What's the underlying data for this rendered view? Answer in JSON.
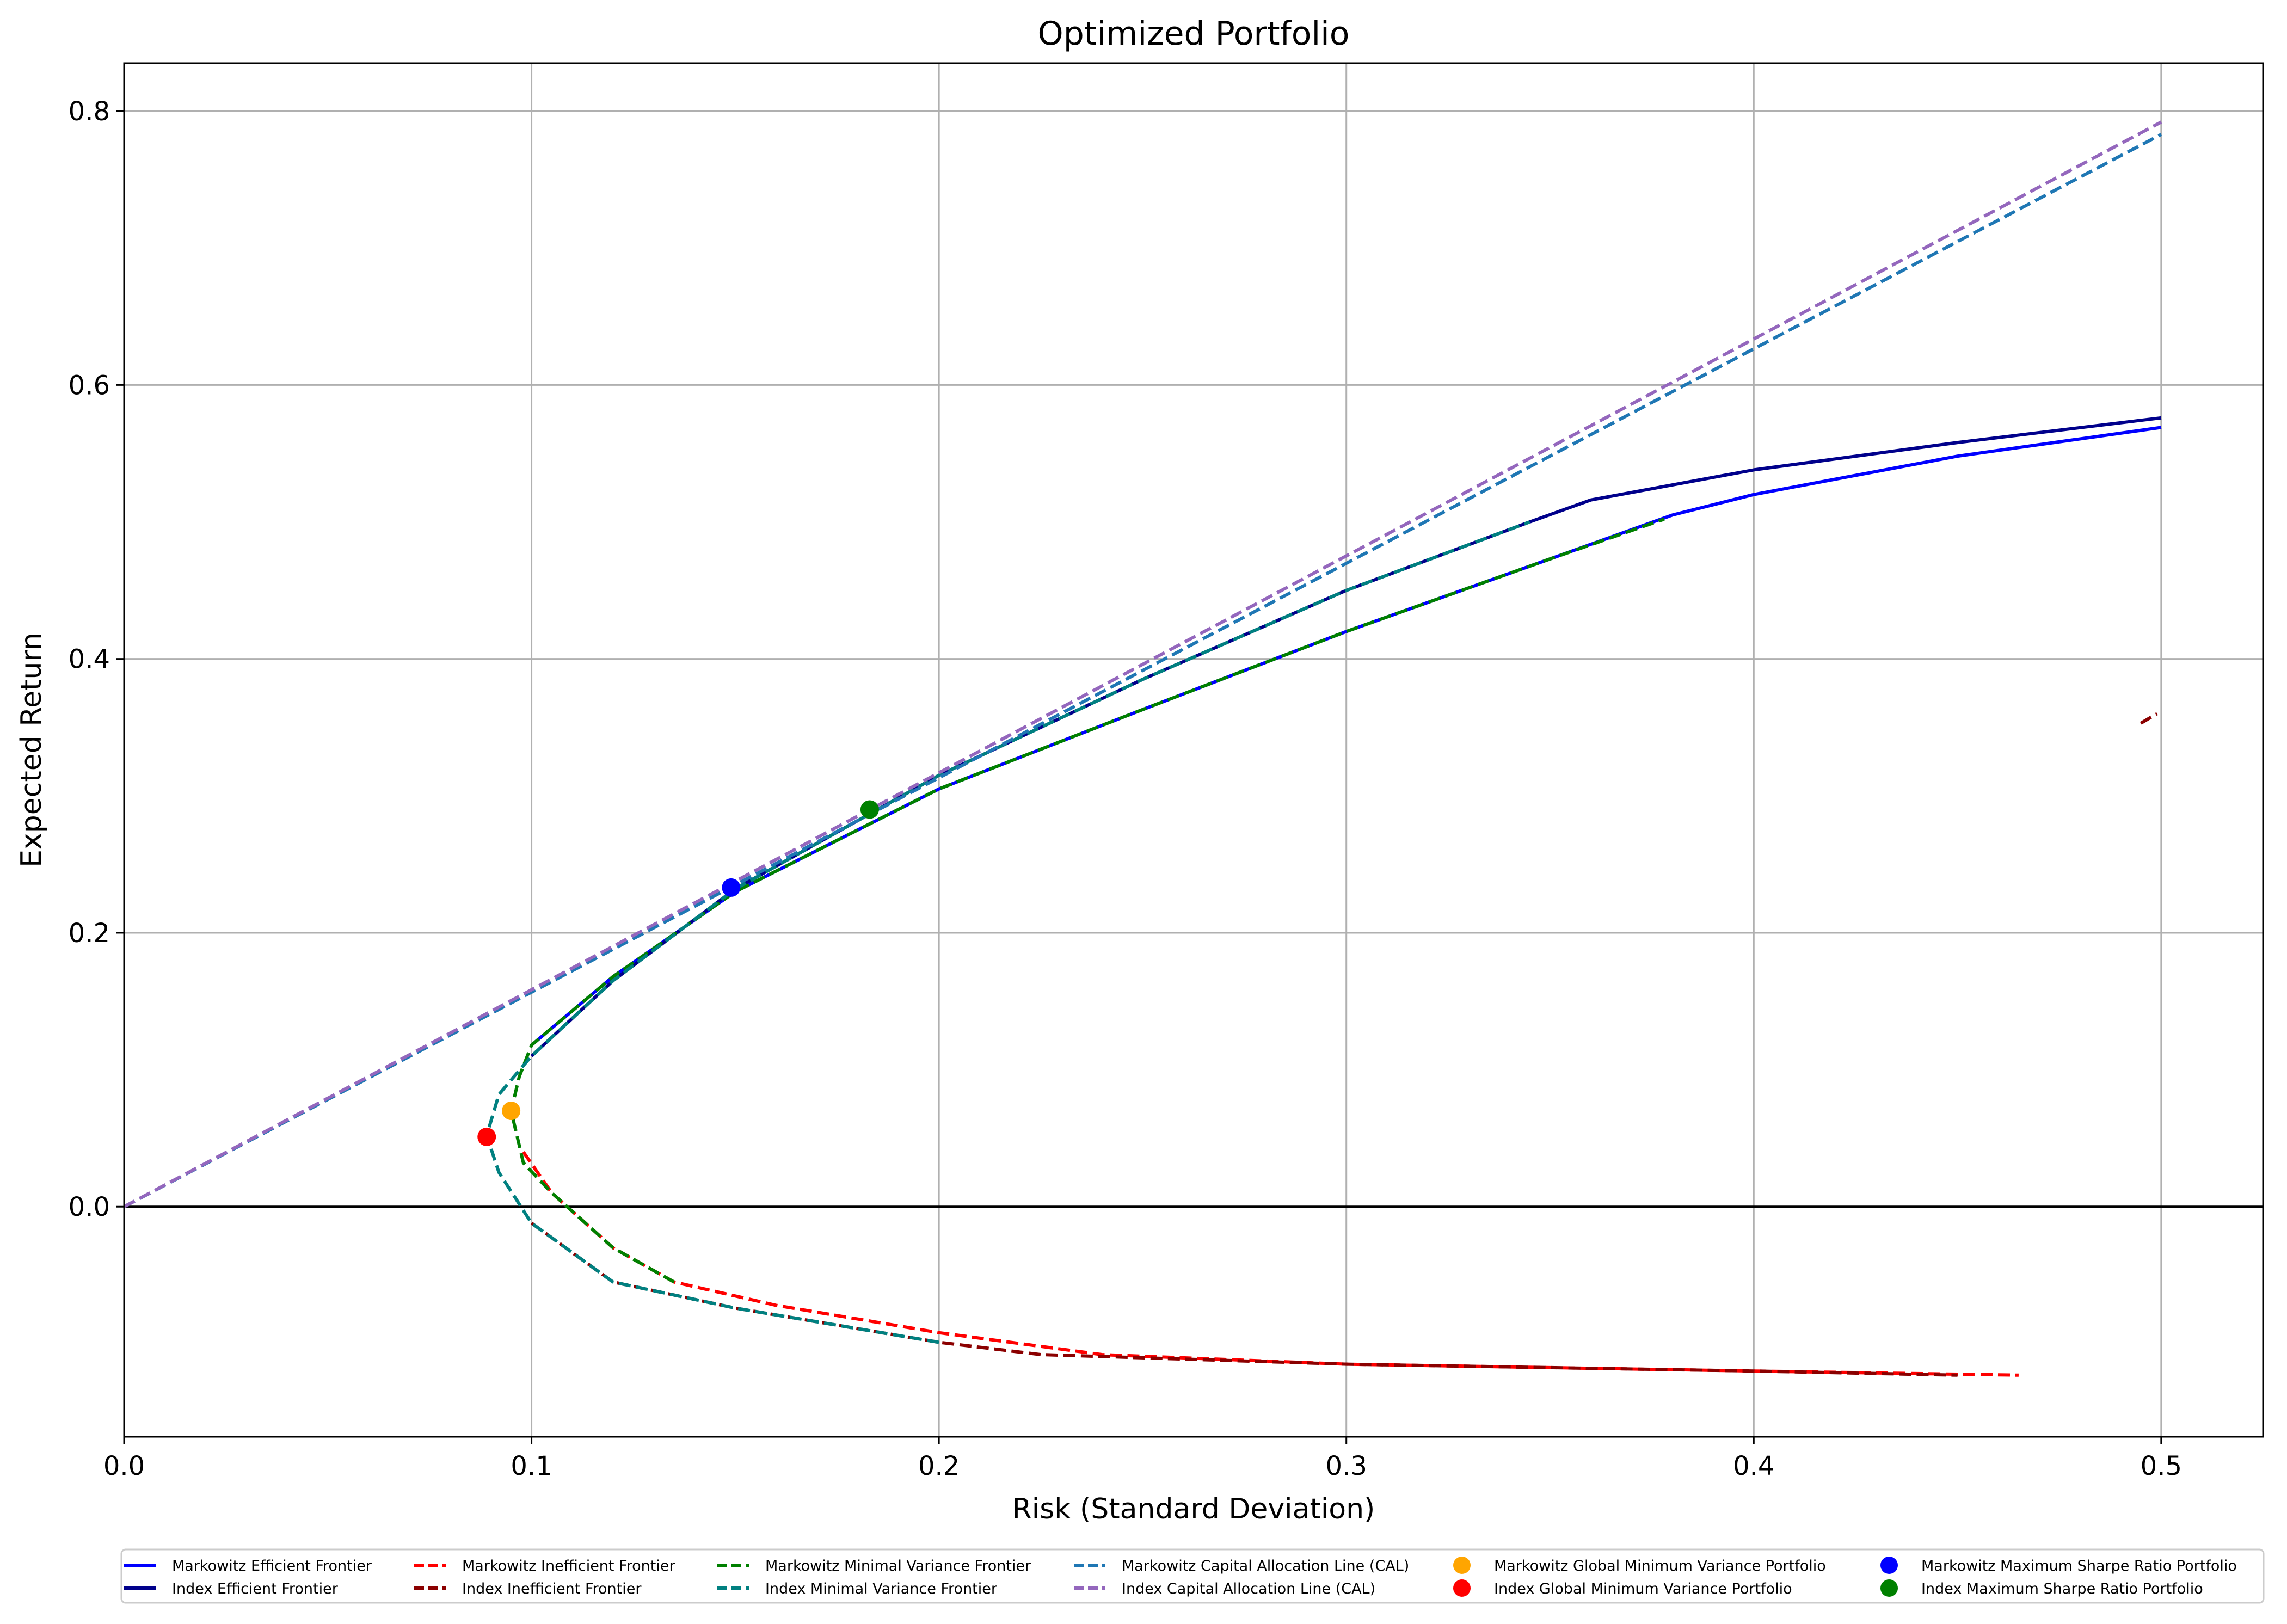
{
  "chart_data": {
    "type": "line",
    "title": "Optimized Portfolio",
    "xlabel": "Risk (Standard Deviation)",
    "ylabel": "Expected Return",
    "xlim": [
      0.0,
      0.525
    ],
    "ylim": [
      -0.168,
      0.835
    ],
    "xticks": [
      0.0,
      0.1,
      0.2,
      0.3,
      0.4,
      0.5
    ],
    "xtick_labels": [
      "0.0",
      "0.1",
      "0.2",
      "0.3",
      "0.4",
      "0.5"
    ],
    "yticks": [
      0.0,
      0.2,
      0.4,
      0.6,
      0.8
    ],
    "ytick_labels": [
      "0.0",
      "0.2",
      "0.4",
      "0.6",
      "0.8"
    ],
    "grid": true,
    "zero_line": true,
    "legend_position": "below the plot, 6 columns",
    "series": [
      {
        "name": "Markowitz Efficient Frontier",
        "style": "solid",
        "color": "#0000ff",
        "points": [
          [
            0.1,
            0.118
          ],
          [
            0.12,
            0.168
          ],
          [
            0.15,
            0.23
          ],
          [
            0.2,
            0.305
          ],
          [
            0.25,
            0.363
          ],
          [
            0.3,
            0.42
          ],
          [
            0.35,
            0.473
          ],
          [
            0.38,
            0.505
          ],
          [
            0.4,
            0.52
          ],
          [
            0.45,
            0.548
          ],
          [
            0.5,
            0.569
          ]
        ]
      },
      {
        "name": "Index Efficient Frontier",
        "style": "solid",
        "color": "#00008b",
        "points": [
          [
            0.1,
            0.11
          ],
          [
            0.12,
            0.165
          ],
          [
            0.15,
            0.232
          ],
          [
            0.2,
            0.315
          ],
          [
            0.25,
            0.385
          ],
          [
            0.3,
            0.45
          ],
          [
            0.345,
            0.5
          ],
          [
            0.36,
            0.516
          ],
          [
            0.4,
            0.538
          ],
          [
            0.45,
            0.558
          ],
          [
            0.5,
            0.576
          ]
        ]
      },
      {
        "name": "Markowitz Inefficient Frontier",
        "style": "dashed",
        "color": "#ff0000",
        "points": [
          [
            0.098,
            0.04
          ],
          [
            0.105,
            0.01
          ],
          [
            0.12,
            -0.03
          ],
          [
            0.135,
            -0.055
          ],
          [
            0.16,
            -0.072
          ],
          [
            0.2,
            -0.092
          ],
          [
            0.225,
            -0.102
          ],
          [
            0.24,
            -0.108
          ],
          [
            0.3,
            -0.115
          ],
          [
            0.4,
            -0.12
          ],
          [
            0.465,
            -0.123
          ]
        ]
      },
      {
        "name": "Index Inefficient Frontier",
        "style": "dashed",
        "color": "#8b0000",
        "points": [
          [
            0.1,
            -0.012
          ],
          [
            0.12,
            -0.055
          ],
          [
            0.15,
            -0.074
          ],
          [
            0.2,
            -0.099
          ],
          [
            0.225,
            -0.108
          ],
          [
            0.3,
            -0.115
          ],
          [
            0.4,
            -0.12
          ],
          [
            0.45,
            -0.123
          ]
        ]
      },
      {
        "name": "Index Inefficient Frontier",
        "style": "dashed",
        "color": "#8b0000",
        "points": [
          [
            0.495,
            0.353
          ],
          [
            0.499,
            0.36
          ]
        ]
      },
      {
        "name": "Markowitz Minimal Variance Frontier",
        "style": "dashed",
        "color": "#008000",
        "points": [
          [
            0.135,
            -0.055
          ],
          [
            0.12,
            -0.03
          ],
          [
            0.105,
            0.01
          ],
          [
            0.098,
            0.032
          ],
          [
            0.095,
            0.07
          ],
          [
            0.097,
            0.095
          ],
          [
            0.1,
            0.118
          ],
          [
            0.12,
            0.168
          ],
          [
            0.15,
            0.23
          ],
          [
            0.2,
            0.305
          ],
          [
            0.25,
            0.363
          ],
          [
            0.3,
            0.42
          ],
          [
            0.35,
            0.473
          ],
          [
            0.378,
            0.502
          ]
        ]
      },
      {
        "name": "Index Minimal Variance Frontier",
        "style": "dashed",
        "color": "#008080",
        "points": [
          [
            0.2,
            -0.099
          ],
          [
            0.15,
            -0.074
          ],
          [
            0.12,
            -0.055
          ],
          [
            0.1,
            -0.012
          ],
          [
            0.092,
            0.025
          ],
          [
            0.089,
            0.052
          ],
          [
            0.092,
            0.082
          ],
          [
            0.1,
            0.11
          ],
          [
            0.12,
            0.165
          ],
          [
            0.15,
            0.232
          ],
          [
            0.2,
            0.315
          ],
          [
            0.25,
            0.385
          ],
          [
            0.3,
            0.45
          ],
          [
            0.345,
            0.5
          ]
        ]
      },
      {
        "name": "Markowitz Capital Allocation Line (CAL)",
        "style": "dashed",
        "color": "#1f77b4",
        "points": [
          [
            0.0,
            0.0
          ],
          [
            0.5,
            0.783
          ]
        ]
      },
      {
        "name": "Index Capital Allocation Line (CAL)",
        "style": "dashed",
        "color": "#9467bd",
        "points": [
          [
            0.0,
            0.0
          ],
          [
            0.5,
            0.792
          ]
        ]
      }
    ],
    "markers": [
      {
        "name": "Markowitz Global Minimum Variance Portfolio",
        "color": "#ffa500",
        "x": 0.095,
        "y": 0.07
      },
      {
        "name": "Index Global Minimum Variance Portfolio",
        "color": "#ff0000",
        "x": 0.089,
        "y": 0.051
      },
      {
        "name": "Markowitz Maximum Sharpe Ratio Portfolio",
        "color": "#0000ff",
        "x": 0.149,
        "y": 0.233
      },
      {
        "name": "Index Maximum Sharpe Ratio Portfolio",
        "color": "#008000",
        "x": 0.183,
        "y": 0.29
      }
    ],
    "legend": [
      {
        "label": "Markowitz Efficient Frontier",
        "kind": "line",
        "style": "solid",
        "color": "#0000ff"
      },
      {
        "label": "Index Efficient Frontier",
        "kind": "line",
        "style": "solid",
        "color": "#00008b"
      },
      {
        "label": "Markowitz Inefficient Frontier",
        "kind": "line",
        "style": "dashed",
        "color": "#ff0000"
      },
      {
        "label": "Index Inefficient Frontier",
        "kind": "line",
        "style": "dashed",
        "color": "#8b0000"
      },
      {
        "label": "Markowitz Minimal Variance Frontier",
        "kind": "line",
        "style": "dashed",
        "color": "#008000"
      },
      {
        "label": "Index Minimal Variance Frontier",
        "kind": "line",
        "style": "dashed",
        "color": "#008080"
      },
      {
        "label": "Markowitz Capital Allocation Line (CAL)",
        "kind": "line",
        "style": "dashed",
        "color": "#1f77b4"
      },
      {
        "label": "Index Capital Allocation Line (CAL)",
        "kind": "line",
        "style": "dashed",
        "color": "#9467bd"
      },
      {
        "label": "Markowitz Global Minimum Variance Portfolio",
        "kind": "marker",
        "color": "#ffa500"
      },
      {
        "label": "Index Global Minimum Variance Portfolio",
        "kind": "marker",
        "color": "#ff0000"
      },
      {
        "label": "Markowitz Maximum Sharpe Ratio Portfolio",
        "kind": "marker",
        "color": "#0000ff"
      },
      {
        "label": "Index Maximum Sharpe Ratio Portfolio",
        "kind": "marker",
        "color": "#008000"
      }
    ],
    "colors": {
      "grid": "#b0b0b0",
      "axis": "#000000",
      "zero_line": "#000000"
    }
  }
}
